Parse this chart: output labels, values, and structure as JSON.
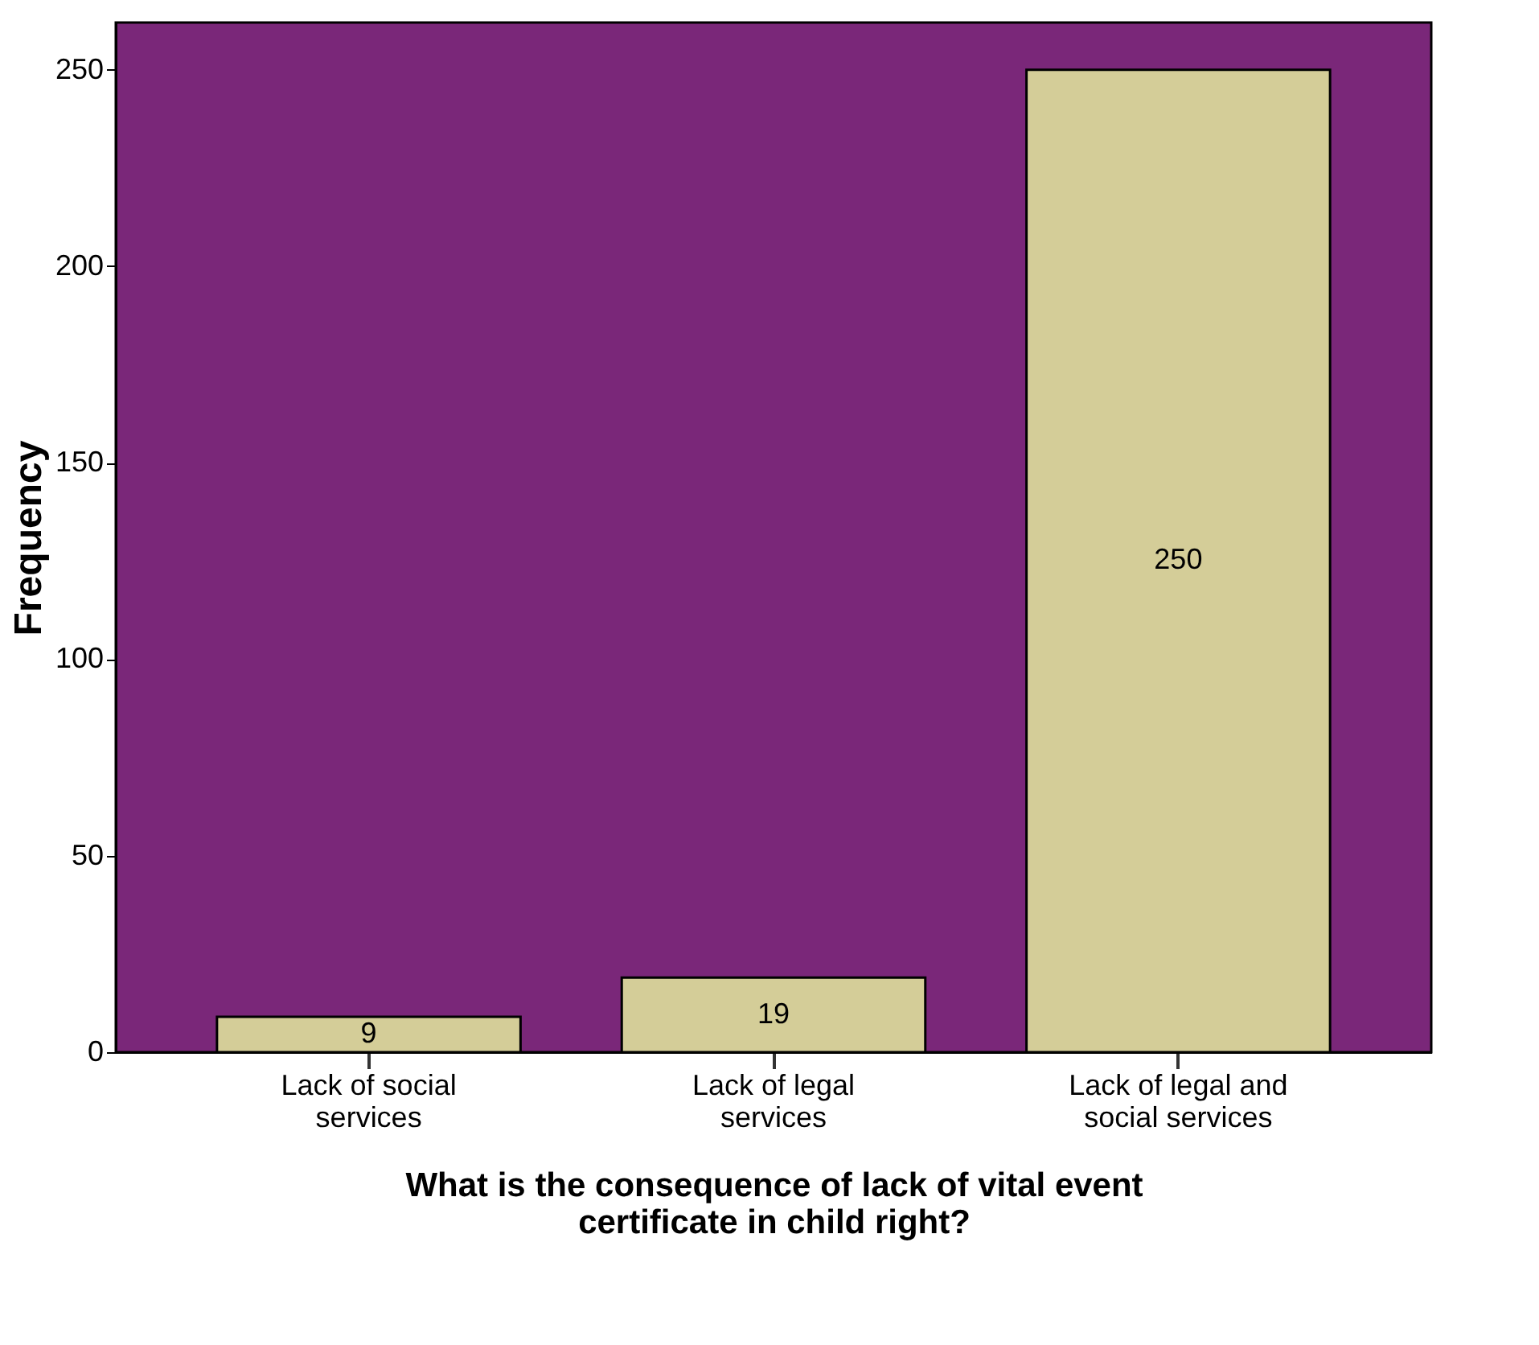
{
  "chart_data": {
    "type": "bar",
    "xlabel": "What is the consequence of lack of vital event certificate in child right?",
    "ylabel": "Frequency",
    "categories": [
      "Lack of social services",
      "Lack of legal services",
      "Lack of legal and social services"
    ],
    "values": [
      9,
      19,
      250
    ],
    "color": "#d4cd98",
    "ylim": [
      0,
      262
    ],
    "yticks": [
      0,
      50,
      100,
      150,
      200,
      250
    ],
    "data_labels": true,
    "grid": false
  }
}
